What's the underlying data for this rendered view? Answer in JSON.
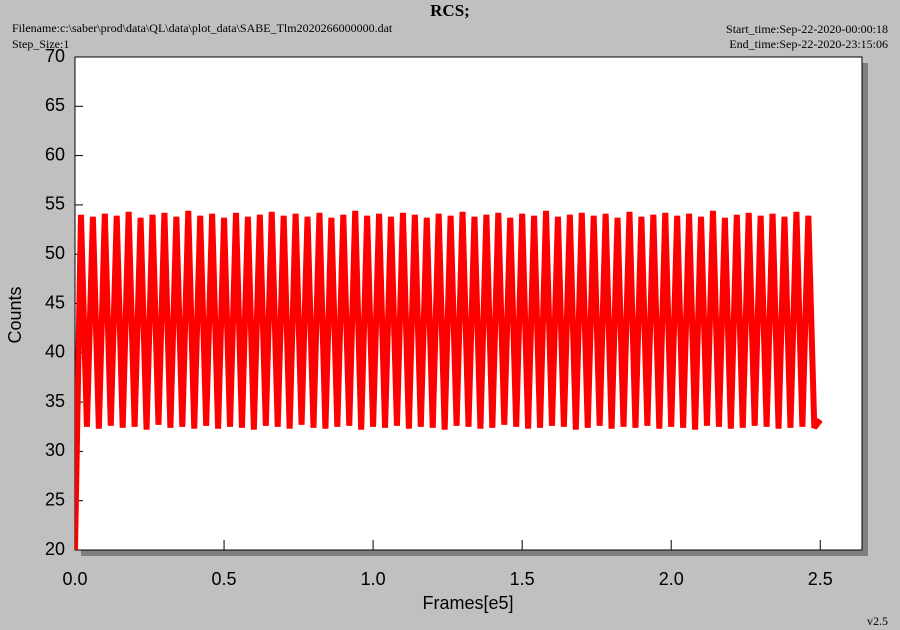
{
  "chart_data": {
    "type": "line",
    "title": "RCS;",
    "annotations": [
      "Filename:c:\\saber\\prod\\data\\QL\\data\\plot_data\\SABE_Tlm2020266000000.dat",
      "Step_Size:1",
      "Start_time:Sep-22-2020-00:00:18",
      "End_time:Sep-22-2020-23:15:06",
      "v2.5"
    ],
    "xlabel": "Frames[e5]",
    "ylabel": "Counts",
    "color": "#ff0000",
    "xlim": [
      0,
      2.64
    ],
    "ylim": [
      20,
      70
    ],
    "xticks": [
      {
        "value": 0,
        "label": "0.0"
      },
      0.5,
      {
        "value": 1,
        "label": "1.0"
      },
      1.5,
      {
        "value": 2,
        "label": "2.0"
      },
      2.5
    ],
    "yticks": [
      20,
      25,
      30,
      35,
      40,
      45,
      50,
      55,
      60,
      65,
      70
    ],
    "x": [
      0,
      0.02,
      0.04,
      0.06,
      0.08,
      0.1,
      0.12,
      0.14,
      0.16,
      0.18,
      0.2,
      0.22,
      0.24,
      0.26,
      0.28,
      0.3,
      0.32,
      0.34,
      0.36,
      0.38,
      0.4,
      0.42,
      0.44,
      0.46,
      0.48,
      0.5,
      0.52,
      0.54,
      0.56,
      0.58,
      0.6,
      0.62,
      0.64,
      0.66,
      0.68,
      0.7,
      0.72,
      0.74,
      0.76,
      0.78,
      0.8,
      0.82,
      0.84,
      0.86,
      0.88,
      0.9,
      0.92,
      0.94,
      0.96,
      0.98,
      1,
      1.02,
      1.04,
      1.06,
      1.08,
      1.1,
      1.12,
      1.14,
      1.16,
      1.18,
      1.2,
      1.22,
      1.24,
      1.26,
      1.28,
      1.3,
      1.32,
      1.34,
      1.36,
      1.38,
      1.4,
      1.42,
      1.44,
      1.46,
      1.48,
      1.5,
      1.52,
      1.54,
      1.56,
      1.58,
      1.6,
      1.62,
      1.64,
      1.66,
      1.68,
      1.7,
      1.72,
      1.74,
      1.76,
      1.78,
      1.8,
      1.82,
      1.84,
      1.86,
      1.88,
      1.9,
      1.92,
      1.94,
      1.96,
      1.98,
      2,
      2.02,
      2.04,
      2.06,
      2.08,
      2.1,
      2.12,
      2.14,
      2.16,
      2.18,
      2.2,
      2.22,
      2.24,
      2.26,
      2.28,
      2.3,
      2.32,
      2.34,
      2.36,
      2.38,
      2.4,
      2.42,
      2.44,
      2.46,
      2.48,
      2.5
    ],
    "values": [
      20,
      54,
      32.5,
      53.8,
      32.3,
      54.1,
      32.6,
      53.9,
      32.4,
      54.3,
      32.5,
      53.7,
      32.2,
      54,
      32.7,
      54.2,
      32.4,
      53.8,
      32.5,
      54.4,
      32.3,
      53.9,
      32.6,
      54.1,
      32.3,
      53.7,
      32.5,
      54.2,
      32.4,
      53.8,
      32.2,
      54,
      32.6,
      54.3,
      32.5,
      53.9,
      32.3,
      54.1,
      32.7,
      53.8,
      32.4,
      54.2,
      32.3,
      53.7,
      32.5,
      54,
      32.6,
      54.4,
      32.2,
      53.9,
      32.5,
      54.1,
      32.4,
      53.8,
      32.6,
      54.2,
      32.3,
      54,
      32.5,
      53.7,
      32.4,
      54.1,
      32.2,
      53.9,
      32.6,
      54.3,
      32.5,
      53.8,
      32.3,
      54,
      32.4,
      54.2,
      32.7,
      53.7,
      32.5,
      54.1,
      32.3,
      53.9,
      32.4,
      54.4,
      32.6,
      53.8,
      32.5,
      54,
      32.2,
      54.2,
      32.4,
      53.9,
      32.6,
      54.1,
      32.3,
      53.7,
      32.5,
      54.3,
      32.4,
      53.8,
      32.6,
      54,
      32.3,
      54.2,
      32.5,
      53.9,
      32.4,
      54.1,
      32.2,
      53.8,
      32.6,
      54.4,
      32.5,
      53.7,
      32.3,
      54,
      32.4,
      54.2,
      32.6,
      53.9,
      32.5,
      54.1,
      32.3,
      53.8,
      32.4,
      54.3,
      32.5,
      53.9,
      32.4,
      33.2
    ]
  }
}
